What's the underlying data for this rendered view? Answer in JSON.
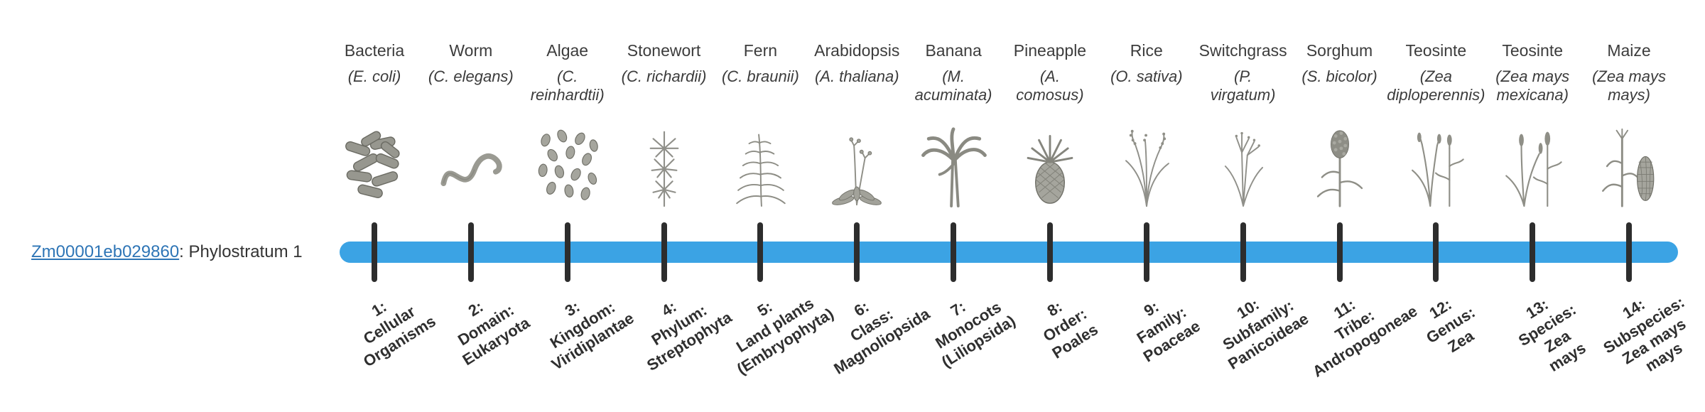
{
  "gene": {
    "id": "Zm00001eb029860",
    "suffix": ": Phylostratum 1",
    "link_color": "#2e75b6"
  },
  "timeline": {
    "bar_color": "#3ba3e4",
    "tick_color": "#2d2d2d"
  },
  "organisms": [
    {
      "name": "Bacteria",
      "sci_name": "(E. coli)",
      "icon": "bacteria-icon",
      "stratum_label": "1:\nCellular\nOrganisms"
    },
    {
      "name": "Worm",
      "sci_name": "(C. elegans)",
      "icon": "worm-icon",
      "stratum_label": "2:\nDomain:\nEukaryota"
    },
    {
      "name": "Algae",
      "sci_name": "(C.\nreinhardtii)",
      "icon": "algae-icon",
      "stratum_label": "3:\nKingdom:\nViridiplantae"
    },
    {
      "name": "Stonewort",
      "sci_name": "(C. richardii)",
      "icon": "stonewort-icon",
      "stratum_label": "4:\nPhylum:\nStreptophyta"
    },
    {
      "name": "Fern",
      "sci_name": "(C. braunii)",
      "icon": "fern-icon",
      "stratum_label": "5:\nLand plants\n(Embryophyta)"
    },
    {
      "name": "Arabidopsis",
      "sci_name": "(A. thaliana)",
      "icon": "arabidopsis-icon",
      "stratum_label": "6:\nClass:\nMagnoliopsida"
    },
    {
      "name": "Banana",
      "sci_name": "(M.\nacuminata)",
      "icon": "banana-icon",
      "stratum_label": "7:\nMonocots\n(Liliopsida)"
    },
    {
      "name": "Pineapple",
      "sci_name": "(A.\ncomosus)",
      "icon": "pineapple-icon",
      "stratum_label": "8:\nOrder:\nPoales"
    },
    {
      "name": "Rice",
      "sci_name": "(O. sativa)",
      "icon": "rice-icon",
      "stratum_label": "9:\nFamily:\nPoaceae"
    },
    {
      "name": "Switchgrass",
      "sci_name": "(P.\nvirgatum)",
      "icon": "switchgrass-icon",
      "stratum_label": "10:\nSubfamily:\nPanicoideae"
    },
    {
      "name": "Sorghum",
      "sci_name": "(S. bicolor)",
      "icon": "sorghum-icon",
      "stratum_label": "11:\nTribe:\nAndropogoneae"
    },
    {
      "name": "Teosinte",
      "sci_name": "(Zea\ndiploperennis)",
      "icon": "teosinte-diploperennis-icon",
      "stratum_label": "12:\nGenus:\nZea"
    },
    {
      "name": "Teosinte",
      "sci_name": "(Zea mays\nmexicana)",
      "icon": "teosinte-mexicana-icon",
      "stratum_label": "13:\nSpecies:\nZea\nmays"
    },
    {
      "name": "Maize",
      "sci_name": "(Zea mays\nmays)",
      "icon": "maize-icon",
      "stratum_label": "14:\nSubspecies:\nZea mays\nmays"
    }
  ]
}
